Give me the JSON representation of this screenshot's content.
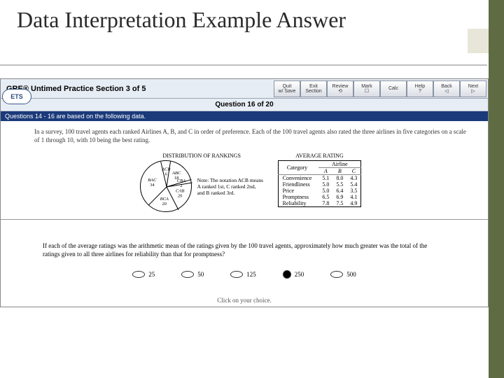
{
  "slide": {
    "title": "Data Interpretation Example Answer",
    "accent_color": "#5f6b42"
  },
  "gre": {
    "header": "GRE® Untimed Practice  Section 3 of 5",
    "badge": "ETS",
    "question_counter": "Question 16 of 20",
    "instruction_bar": "Questions 14 - 16 are based on the following data.",
    "toolbar": [
      {
        "line1": "Quit",
        "line2": "w/ Save"
      },
      {
        "line1": "Exit",
        "line2": "Section"
      },
      {
        "line1": "Review",
        "line2": "⟲"
      },
      {
        "line1": "Mark",
        "line2": "☐"
      },
      {
        "line1": "Calc",
        "line2": ""
      },
      {
        "line1": "Help",
        "line2": "?"
      },
      {
        "line1": "Back",
        "line2": "◁"
      },
      {
        "line1": "Next",
        "line2": "▷"
      }
    ],
    "stem_top": "In a survey, 100 travel agents each ranked Airlines A, B, and C in order of preference. Each of the 100 travel agents also rated the three airlines in five categories on a scale of 1 through 10, with 10 being the best rating.",
    "distribution": {
      "title": "DISTRIBUTION OF RANKINGS",
      "segments": [
        {
          "label": "ACB",
          "value": 6
        },
        {
          "label": "ABC",
          "value": 18
        },
        {
          "label": "CBA",
          "value": 2
        },
        {
          "label": "CAB",
          "value": 20
        },
        {
          "label": "BCA",
          "value": 20
        },
        {
          "label": "BAC",
          "value": 34
        }
      ],
      "note": "Note: The notation ACB means A ranked 1st, C ranked 2nd, and B ranked 3rd.",
      "stroke_color": "#000000",
      "fill_color": "#ffffff"
    },
    "avg_rating": {
      "title": "AVERAGE RATING",
      "col_header": "Airline",
      "cat_header": "Category",
      "columns": [
        "A",
        "B",
        "C"
      ],
      "rows": [
        {
          "cat": "Convenience",
          "vals": [
            "5.1",
            "8.0",
            "4.3"
          ]
        },
        {
          "cat": "Friendliness",
          "vals": [
            "5.0",
            "5.5",
            "5.4"
          ]
        },
        {
          "cat": "Price",
          "vals": [
            "5.0",
            "6.4",
            "3.5"
          ]
        },
        {
          "cat": "Promptness",
          "vals": [
            "6.5",
            "6.9",
            "4.1"
          ]
        },
        {
          "cat": "Reliability",
          "vals": [
            "7.8",
            "7.5",
            "4.9"
          ]
        }
      ]
    },
    "stem_bottom": "If each of the average ratings was the arithmetic mean of the ratings given by the 100 travel agents, approximately how much greater was the total of the ratings given to all three airlines for reliability than that for promptness?",
    "choices": [
      "25",
      "50",
      "125",
      "250",
      "500"
    ],
    "selected_index": 3,
    "hint": "Click on your choice."
  }
}
